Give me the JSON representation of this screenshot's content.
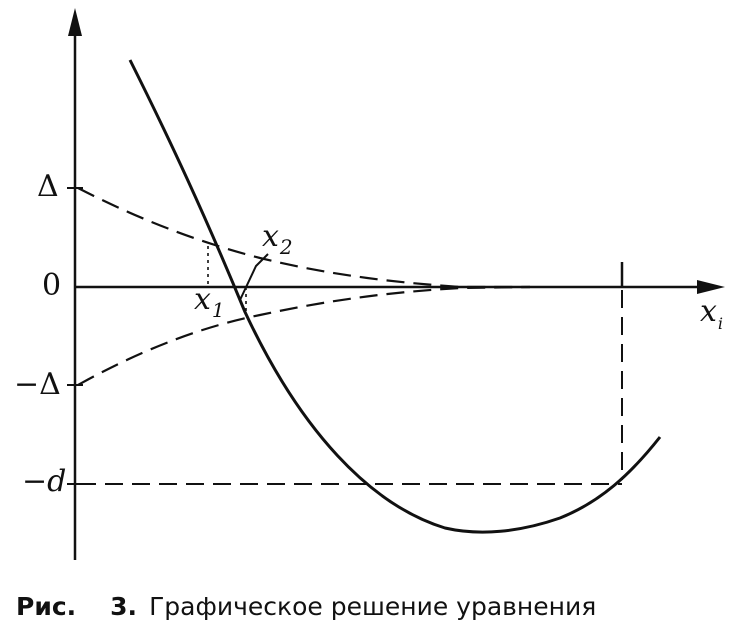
{
  "figure": {
    "labels": {
      "delta": "Δ",
      "zero": "0",
      "minus_delta": "−Δ",
      "minus_d": "−d",
      "x1": "x",
      "x1_sub": "1",
      "x2": "x",
      "x2_sub": "2",
      "xi": "x",
      "xi_sub": "i",
      "tick": "I"
    },
    "caption": {
      "ref": "Рис.",
      "number": "3.",
      "text": "Графическое решение уравнения"
    }
  },
  "colors": {
    "ink": "#111111",
    "background": "#ffffff"
  }
}
